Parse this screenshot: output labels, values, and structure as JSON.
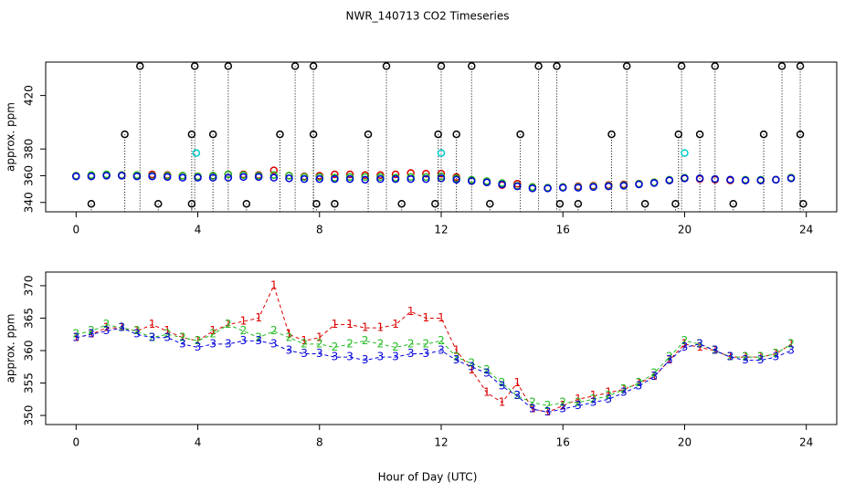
{
  "chart_data": [
    {
      "type": "scatter",
      "title": "NWR_140713  CO2 Timeseries",
      "ylabel": "approx. ppm",
      "xlim": [
        -1,
        25
      ],
      "xticks": [
        0,
        4,
        8,
        12,
        16,
        20,
        24
      ],
      "ylim": [
        333,
        445
      ],
      "yticks": [
        340,
        360,
        380,
        420
      ],
      "x": [
        0,
        0.5,
        1,
        1.5,
        2,
        2.5,
        3,
        3.5,
        4,
        4.5,
        5,
        5.5,
        6,
        6.5,
        7,
        7.5,
        8,
        8.5,
        9,
        9.5,
        10,
        10.5,
        11,
        11.5,
        12,
        12.5,
        13,
        13.5,
        14,
        14.5,
        15,
        15.5,
        16,
        16.5,
        17,
        17.5,
        18,
        18.5,
        19,
        19.5,
        20,
        20.5,
        21,
        21.5,
        22,
        22.5,
        23,
        23.5
      ],
      "series": [
        {
          "color": "#dd0000",
          "values": [
            360,
            360,
            360.5,
            360.5,
            360,
            361,
            360.5,
            360,
            359.5,
            360,
            361,
            361,
            360.5,
            364,
            360,
            359.5,
            360,
            361,
            361,
            360.5,
            360.5,
            361,
            362,
            361.5,
            361.5,
            359,
            356.5,
            355,
            353,
            354,
            351.5,
            351,
            351.5,
            352,
            352.5,
            353,
            353.5,
            354,
            355,
            356.5,
            358,
            357.5,
            357,
            356.5,
            356.5,
            356.5,
            357,
            358.5
          ]
        },
        {
          "color": "#22bb22",
          "values": [
            360,
            360.5,
            361,
            360.5,
            360.5,
            360,
            360,
            360,
            359.5,
            360,
            361,
            360.5,
            360,
            360.5,
            360,
            359,
            359,
            358.5,
            359,
            359,
            359,
            358.5,
            359,
            359,
            359.5,
            358,
            357,
            356,
            354.5,
            352.5,
            351.5,
            351,
            351.5,
            351.5,
            352,
            352.5,
            353,
            354,
            355,
            357,
            358.5,
            358,
            357.5,
            357,
            357,
            357,
            357,
            358.5
          ]
        },
        {
          "color": "#0000dd",
          "values": [
            359.5,
            359.5,
            360,
            360,
            359.5,
            359.5,
            359,
            358.5,
            358.5,
            358.5,
            358.5,
            359,
            359,
            358.5,
            358,
            357.5,
            357.5,
            357.5,
            357.5,
            357,
            357.5,
            357.5,
            357.5,
            357.5,
            358,
            357,
            356,
            355,
            353.5,
            352,
            350.5,
            350.5,
            351,
            351,
            351.5,
            352,
            352.5,
            353.5,
            354.5,
            356.5,
            358,
            358,
            357.5,
            357,
            356.5,
            356.5,
            357,
            358
          ]
        },
        {
          "color": "#000000",
          "droplines": true,
          "x": [
            2.1,
            3.9,
            5.0,
            7.2,
            7.8,
            10.2,
            12.0,
            13.0,
            15.2,
            15.8,
            18.1,
            19.9,
            21.0,
            23.2,
            23.8,
            1.6,
            3.8,
            4.5,
            6.7,
            7.8,
            9.6,
            11.9,
            12.5,
            14.6,
            17.6,
            19.8,
            20.5,
            22.6,
            23.8,
            0.5,
            2.7,
            3.8,
            5.6,
            7.9,
            8.5,
            10.7,
            11.8,
            13.6,
            15.9,
            16.5,
            18.7,
            19.7,
            21.6,
            23.9
          ],
          "values": [
            442,
            442,
            442,
            442,
            442,
            442,
            442,
            442,
            442,
            442,
            442,
            442,
            442,
            442,
            442,
            391,
            391,
            391,
            391,
            391,
            391,
            391,
            391,
            391,
            391,
            391,
            391,
            391,
            391,
            339,
            339,
            339,
            339,
            339,
            339,
            339,
            339,
            339,
            339,
            339,
            339,
            339,
            339,
            339
          ]
        },
        {
          "color": "#00cccc",
          "x": [
            3.95,
            12.0,
            20.0
          ],
          "values": [
            377,
            377,
            377
          ]
        }
      ]
    },
    {
      "type": "line",
      "ylabel": "approx. ppm",
      "xlabel": "Hour of Day (UTC)",
      "xlim": [
        -1,
        25
      ],
      "xticks": [
        0,
        4,
        8,
        12,
        16,
        20,
        24
      ],
      "ylim": [
        348.6,
        372.1
      ],
      "yticks": [
        350,
        355,
        360,
        365,
        370
      ],
      "x": [
        0,
        0.5,
        1,
        1.5,
        2,
        2.5,
        3,
        3.5,
        4,
        4.5,
        5,
        5.5,
        6,
        6.5,
        7,
        7.5,
        8,
        8.5,
        9,
        9.5,
        10,
        10.5,
        11,
        11.5,
        12,
        12.5,
        13,
        13.5,
        14,
        14.5,
        15,
        15.5,
        16,
        16.5,
        17,
        17.5,
        18,
        18.5,
        19,
        19.5,
        20,
        20.5,
        21,
        21.5,
        22,
        22.5,
        23,
        23.5
      ],
      "series": [
        {
          "name": "1",
          "color": "#dd0000",
          "values": [
            362,
            362.5,
            363.5,
            363.5,
            363,
            364,
            363,
            362,
            361.5,
            363,
            364,
            364.5,
            365,
            370,
            362.5,
            361.5,
            362,
            364,
            364,
            363.5,
            363.5,
            364,
            366,
            365,
            365,
            360,
            357,
            353.5,
            352,
            355,
            351,
            350.5,
            351.5,
            352.5,
            353,
            353.5,
            354,
            355,
            356,
            358.5,
            361,
            360.5,
            360,
            359,
            359,
            359,
            359.5,
            361
          ]
        },
        {
          "name": "2",
          "color": "#22bb22",
          "values": [
            362.5,
            363,
            364,
            363.5,
            363,
            362,
            362.5,
            362,
            361.5,
            362.5,
            364,
            363,
            362,
            363,
            362,
            361,
            361,
            360.5,
            361,
            361.5,
            361,
            360.5,
            361,
            361,
            361.5,
            359,
            358,
            357,
            355,
            353,
            352,
            351.5,
            352,
            352,
            352.5,
            353,
            354,
            355,
            356.5,
            359,
            361.5,
            361,
            360,
            359,
            359,
            359,
            359.5,
            361
          ]
        },
        {
          "name": "3",
          "color": "#0000dd",
          "values": [
            362,
            362.5,
            363,
            363.5,
            362.5,
            362,
            362,
            361,
            360.5,
            361,
            361,
            361.5,
            361.5,
            361,
            360,
            359.5,
            359.5,
            359,
            359,
            358.5,
            359,
            359,
            359.5,
            359.5,
            360,
            358.5,
            357.5,
            356.5,
            354.5,
            353,
            351,
            350.5,
            351,
            351.5,
            352,
            352.5,
            353.5,
            354.5,
            356,
            358.5,
            360.5,
            361,
            360,
            359,
            358.5,
            358.5,
            359,
            360
          ]
        }
      ]
    }
  ]
}
